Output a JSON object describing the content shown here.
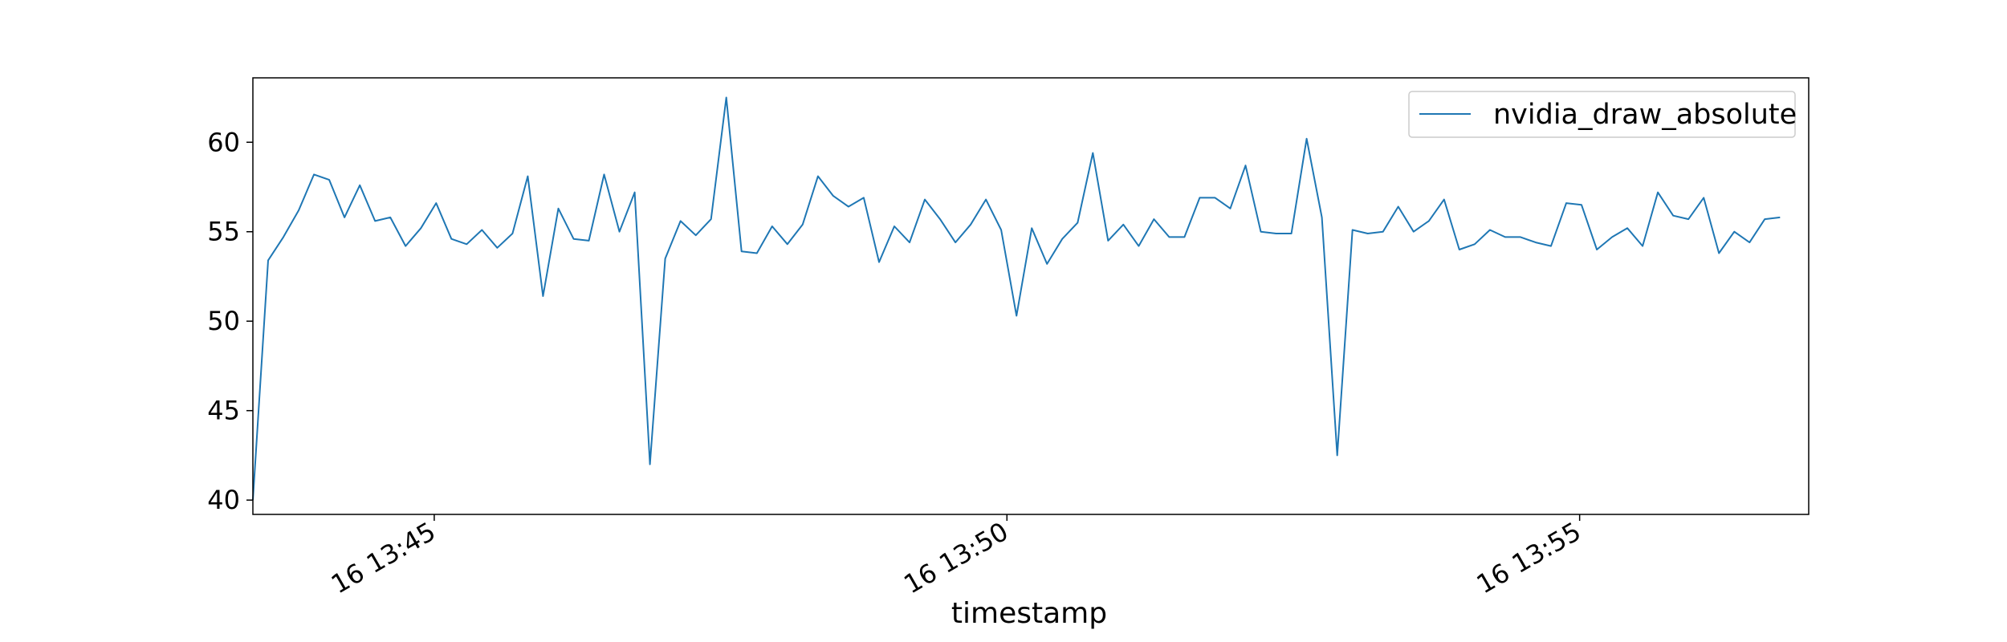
{
  "chart_data": {
    "type": "line",
    "title": "",
    "xlabel": "timestamp",
    "ylabel": "",
    "legend": {
      "position": "upper-right",
      "entries": [
        "nvidia_draw_absolute"
      ]
    },
    "grid": false,
    "xlim": [
      "16 13:43:25",
      "16 13:57:00"
    ],
    "ylim": [
      39.2,
      63.6
    ],
    "xticks": [
      {
        "t": "16 13:45:00",
        "label": "16 13:45"
      },
      {
        "t": "16 13:50:00",
        "label": "16 13:50"
      },
      {
        "t": "16 13:55:00",
        "label": "16 13:55"
      }
    ],
    "yticks": [
      {
        "v": 40,
        "label": "40"
      },
      {
        "v": 45,
        "label": "45"
      },
      {
        "v": 50,
        "label": "50"
      },
      {
        "v": 55,
        "label": "55"
      },
      {
        "v": 60,
        "label": "60"
      }
    ],
    "colors": {
      "series": "#1f77b4",
      "axes": "#000000"
    },
    "series": [
      {
        "name": "nvidia_draw_absolute",
        "x_start": "16 13:43:25",
        "x_step_seconds": 8,
        "values": [
          40.0,
          53.4,
          54.7,
          56.2,
          58.2,
          57.9,
          55.8,
          57.6,
          55.6,
          55.8,
          54.2,
          55.2,
          56.6,
          54.6,
          54.3,
          55.1,
          54.1,
          54.9,
          58.1,
          51.4,
          56.3,
          54.6,
          54.5,
          58.2,
          55.0,
          57.2,
          42.0,
          53.5,
          55.6,
          54.8,
          55.7,
          62.5,
          53.9,
          53.8,
          55.3,
          54.3,
          55.4,
          58.1,
          57.0,
          56.4,
          56.9,
          53.3,
          55.3,
          54.4,
          56.8,
          55.7,
          54.4,
          55.4,
          56.8,
          55.1,
          50.3,
          55.2,
          53.2,
          54.6,
          55.5,
          59.4,
          54.5,
          55.4,
          54.2,
          55.7,
          54.7,
          54.7,
          56.9,
          56.9,
          56.3,
          58.7,
          55.0,
          54.9,
          54.9,
          60.2,
          55.8,
          42.5,
          55.1,
          54.9,
          55.0,
          56.4,
          55.0,
          55.6,
          56.8,
          54.0,
          54.3,
          55.1,
          54.7,
          54.7,
          54.4,
          54.2,
          56.6,
          56.5,
          54.0,
          54.7,
          55.2,
          54.2,
          57.2,
          55.9,
          55.7,
          56.9,
          53.8,
          55.0,
          54.4,
          55.7,
          55.8
        ]
      }
    ]
  }
}
